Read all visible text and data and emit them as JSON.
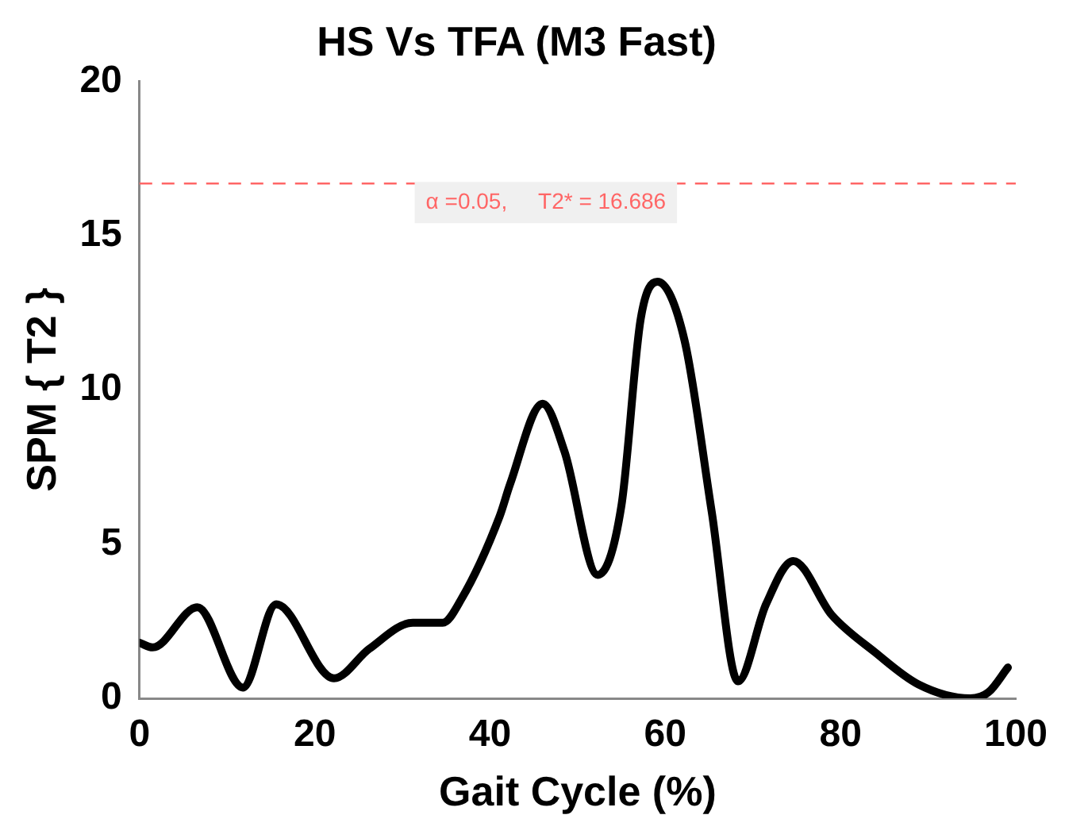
{
  "chart_data": {
    "type": "line",
    "title": "HS Vs TFA (M3 Fast)",
    "xlabel": "Gait Cycle (%)",
    "ylabel": "SPM { T2 }",
    "x": [
      0,
      1.5,
      6.6,
      11.8,
      15.6,
      22.2,
      26.2,
      31.2,
      34.6,
      36.7,
      41.1,
      42.3,
      46,
      48.5,
      52.3,
      55,
      57.2,
      59.1,
      62.2,
      65.3,
      68.3,
      71.5,
      74.6,
      79,
      83.9,
      88.9,
      94.8,
      96.9,
      99.1
    ],
    "series": [
      {
        "color": "#000000",
        "values": [
          1.8,
          1.65,
          2.95,
          0.35,
          3.05,
          0.65,
          1.6,
          2.45,
          2.45,
          3.2,
          5.9,
          6.95,
          9.55,
          8.0,
          4.0,
          6.25,
          12.3,
          13.5,
          11.6,
          6.05,
          0.55,
          3.05,
          4.45,
          2.7,
          1.5,
          0.45,
          0,
          0.2,
          1.0
        ]
      }
    ],
    "xlim": [
      0,
      100
    ],
    "xticks": [
      0,
      20,
      40,
      60,
      80,
      100
    ],
    "ylim": [
      0,
      20
    ],
    "yticks": [
      0,
      5,
      10,
      15,
      20
    ],
    "ref_lines": [
      {
        "axis": "y",
        "value": 16.686,
        "label": "α =0.05,     T2* = 16.686",
        "color": "#ff6666",
        "line_style": "dashed"
      }
    ],
    "grid": false,
    "legend": false,
    "marker": "none",
    "line_style": "solid"
  }
}
